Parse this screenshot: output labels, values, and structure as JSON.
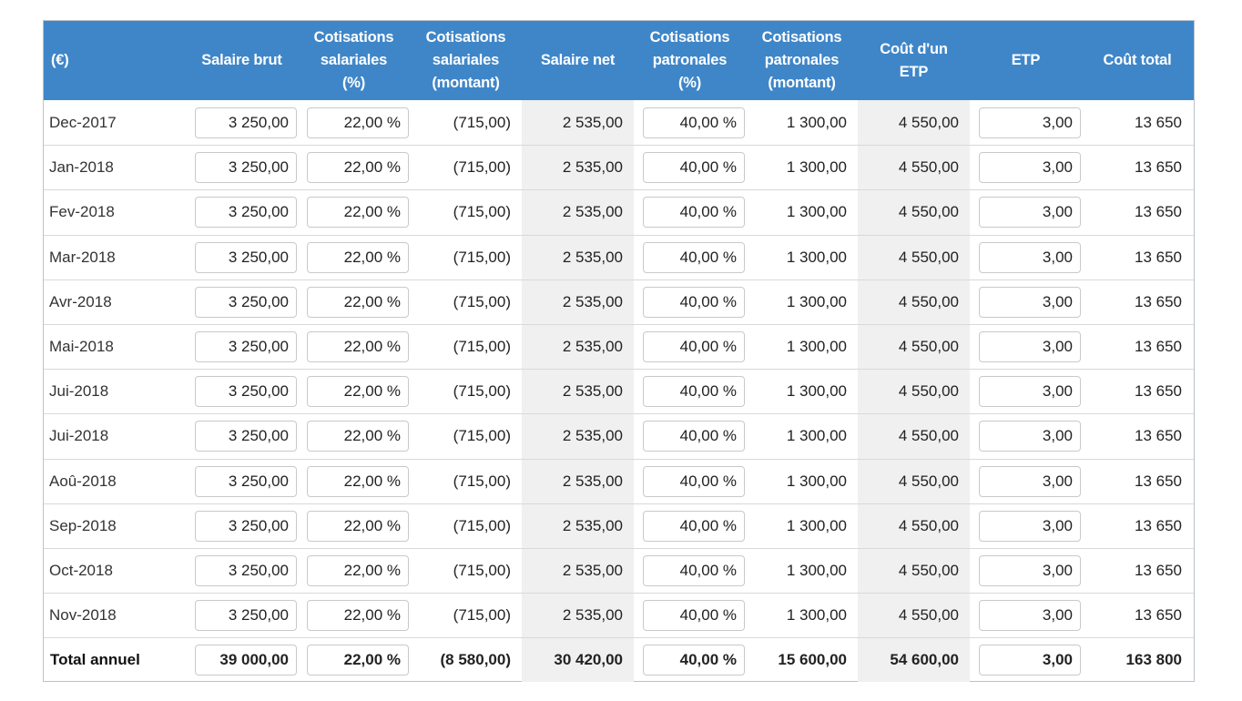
{
  "headers": {
    "currency": "(€)",
    "gross_salary": "Salaire brut",
    "emp_contrib_pct": [
      "Cotisations",
      "salariales",
      "(%)"
    ],
    "emp_contrib_amount": [
      "Cotisations",
      "salariales",
      "(montant)"
    ],
    "net_salary": "Salaire net",
    "er_contrib_pct": [
      "Cotisations",
      "patronales",
      "(%)"
    ],
    "er_contrib_amount": [
      "Cotisations",
      "patronales",
      "(montant)"
    ],
    "fte_cost": [
      "Coût d'un",
      "ETP"
    ],
    "fte": "ETP",
    "total_cost": "Coût total"
  },
  "rows": [
    {
      "month": "Dec-2017",
      "gross": "3 250,00",
      "emp_pct": "22,00 %",
      "emp_amt": "(715,00)",
      "net": "2 535,00",
      "er_pct": "40,00 %",
      "er_amt": "1 300,00",
      "fte_cost": "4 550,00",
      "fte": "3,00",
      "total": "13 650"
    },
    {
      "month": "Jan-2018",
      "gross": "3 250,00",
      "emp_pct": "22,00 %",
      "emp_amt": "(715,00)",
      "net": "2 535,00",
      "er_pct": "40,00 %",
      "er_amt": "1 300,00",
      "fte_cost": "4 550,00",
      "fte": "3,00",
      "total": "13 650"
    },
    {
      "month": "Fev-2018",
      "gross": "3 250,00",
      "emp_pct": "22,00 %",
      "emp_amt": "(715,00)",
      "net": "2 535,00",
      "er_pct": "40,00 %",
      "er_amt": "1 300,00",
      "fte_cost": "4 550,00",
      "fte": "3,00",
      "total": "13 650"
    },
    {
      "month": "Mar-2018",
      "gross": "3 250,00",
      "emp_pct": "22,00 %",
      "emp_amt": "(715,00)",
      "net": "2 535,00",
      "er_pct": "40,00 %",
      "er_amt": "1 300,00",
      "fte_cost": "4 550,00",
      "fte": "3,00",
      "total": "13 650"
    },
    {
      "month": "Avr-2018",
      "gross": "3 250,00",
      "emp_pct": "22,00 %",
      "emp_amt": "(715,00)",
      "net": "2 535,00",
      "er_pct": "40,00 %",
      "er_amt": "1 300,00",
      "fte_cost": "4 550,00",
      "fte": "3,00",
      "total": "13 650"
    },
    {
      "month": "Mai-2018",
      "gross": "3 250,00",
      "emp_pct": "22,00 %",
      "emp_amt": "(715,00)",
      "net": "2 535,00",
      "er_pct": "40,00 %",
      "er_amt": "1 300,00",
      "fte_cost": "4 550,00",
      "fte": "3,00",
      "total": "13 650"
    },
    {
      "month": "Jui-2018",
      "gross": "3 250,00",
      "emp_pct": "22,00 %",
      "emp_amt": "(715,00)",
      "net": "2 535,00",
      "er_pct": "40,00 %",
      "er_amt": "1 300,00",
      "fte_cost": "4 550,00",
      "fte": "3,00",
      "total": "13 650"
    },
    {
      "month": "Jui-2018",
      "gross": "3 250,00",
      "emp_pct": "22,00 %",
      "emp_amt": "(715,00)",
      "net": "2 535,00",
      "er_pct": "40,00 %",
      "er_amt": "1 300,00",
      "fte_cost": "4 550,00",
      "fte": "3,00",
      "total": "13 650"
    },
    {
      "month": "Aoû-2018",
      "gross": "3 250,00",
      "emp_pct": "22,00 %",
      "emp_amt": "(715,00)",
      "net": "2 535,00",
      "er_pct": "40,00 %",
      "er_amt": "1 300,00",
      "fte_cost": "4 550,00",
      "fte": "3,00",
      "total": "13 650"
    },
    {
      "month": "Sep-2018",
      "gross": "3 250,00",
      "emp_pct": "22,00 %",
      "emp_amt": "(715,00)",
      "net": "2 535,00",
      "er_pct": "40,00 %",
      "er_amt": "1 300,00",
      "fte_cost": "4 550,00",
      "fte": "3,00",
      "total": "13 650"
    },
    {
      "month": "Oct-2018",
      "gross": "3 250,00",
      "emp_pct": "22,00 %",
      "emp_amt": "(715,00)",
      "net": "2 535,00",
      "er_pct": "40,00 %",
      "er_amt": "1 300,00",
      "fte_cost": "4 550,00",
      "fte": "3,00",
      "total": "13 650"
    },
    {
      "month": "Nov-2018",
      "gross": "3 250,00",
      "emp_pct": "22,00 %",
      "emp_amt": "(715,00)",
      "net": "2 535,00",
      "er_pct": "40,00 %",
      "er_amt": "1 300,00",
      "fte_cost": "4 550,00",
      "fte": "3,00",
      "total": "13 650"
    }
  ],
  "totals": {
    "month": "Total annuel",
    "gross": "39 000,00",
    "emp_pct": "22,00 %",
    "emp_amt": "(8 580,00)",
    "net": "30 420,00",
    "er_pct": "40,00 %",
    "er_amt": "15 600,00",
    "fte_cost": "54 600,00",
    "fte": "3,00",
    "total": "163 800"
  },
  "colors": {
    "header_bg": "#3f86c8",
    "header_text": "#ffffff",
    "shaded_col": "#f0f0f0",
    "input_border": "#c9c9c9",
    "row_border": "#d9d9d9"
  }
}
